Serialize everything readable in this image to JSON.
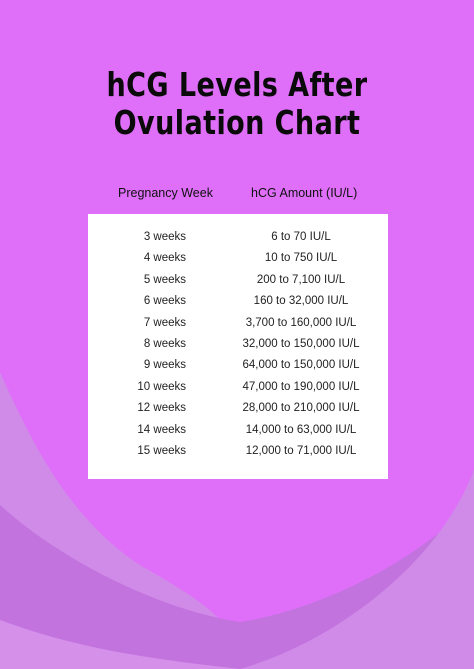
{
  "title_line1": "hCG Levels After",
  "title_line2": "Ovulation Chart",
  "columns": {
    "week": "Pregnancy Week",
    "amount": "hCG Amount (IU/L)"
  },
  "rows": [
    {
      "week": "3 weeks",
      "amount": "6 to 70 IU/L"
    },
    {
      "week": "4 weeks",
      "amount": "10 to 750 IU/L"
    },
    {
      "week": "5 weeks",
      "amount": "200 to 7,100 IU/L"
    },
    {
      "week": "6 weeks",
      "amount": "160 to 32,000 IU/L"
    },
    {
      "week": "7 weeks",
      "amount": "3,700 to 160,000 IU/L"
    },
    {
      "week": "8 weeks",
      "amount": "32,000 to 150,000 IU/L"
    },
    {
      "week": "9 weeks",
      "amount": "64,000 to 150,000 IU/L"
    },
    {
      "week": "10 weeks",
      "amount": "47,000 to 190,000 IU/L"
    },
    {
      "week": "12 weeks",
      "amount": "28,000 to 210,000 IU/L"
    },
    {
      "week": "14 weeks",
      "amount": "14,000 to 63,000 IU/L"
    },
    {
      "week": "15 weeks",
      "amount": "12,000 to 71,000 IU/L"
    }
  ],
  "colors": {
    "background": "#df6ff9",
    "wave_light": "#d08ae8",
    "wave_dark": "#c273de",
    "card": "#ffffff",
    "title": "#0a0a0a"
  }
}
